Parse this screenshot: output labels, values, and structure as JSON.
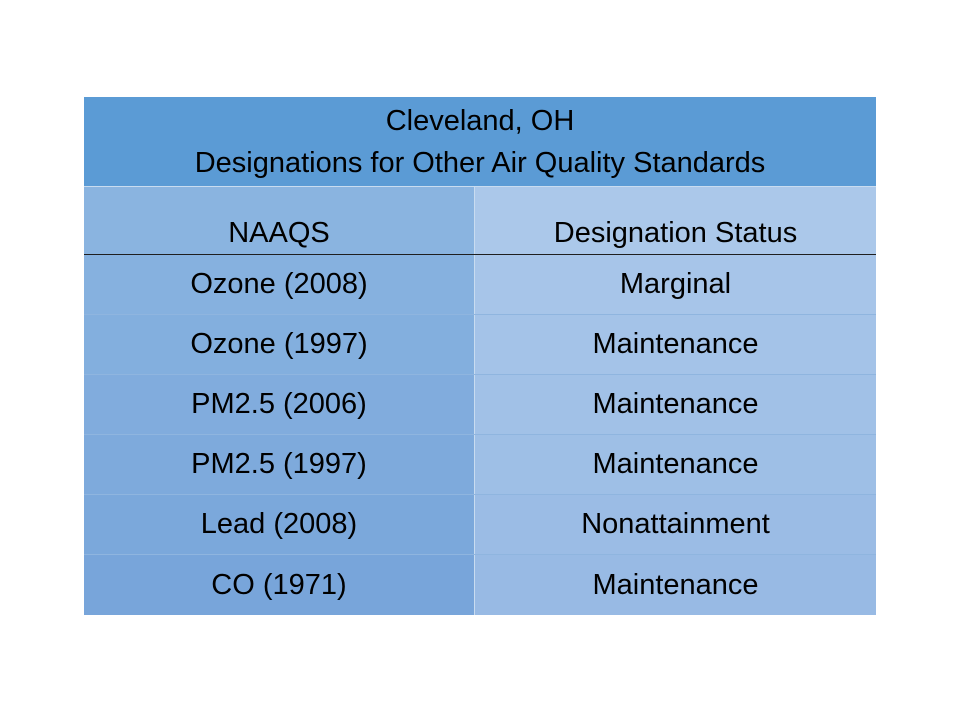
{
  "table": {
    "title_line1": "Cleveland, OH",
    "title_line2": "Designations for Other Air Quality Standards",
    "headers": [
      "NAAQS",
      "Designation Status"
    ],
    "rows": [
      {
        "naaqs": "Ozone (2008)",
        "status": "Marginal"
      },
      {
        "naaqs": "Ozone (1997)",
        "status": "Maintenance"
      },
      {
        "naaqs": "PM2.5 (2006)",
        "status": "Maintenance"
      },
      {
        "naaqs": "PM2.5 (1997)",
        "status": "Maintenance"
      },
      {
        "naaqs": "Lead (2008)",
        "status": "Nonattainment"
      },
      {
        "naaqs": "CO (1971)",
        "status": "Maintenance"
      }
    ]
  }
}
